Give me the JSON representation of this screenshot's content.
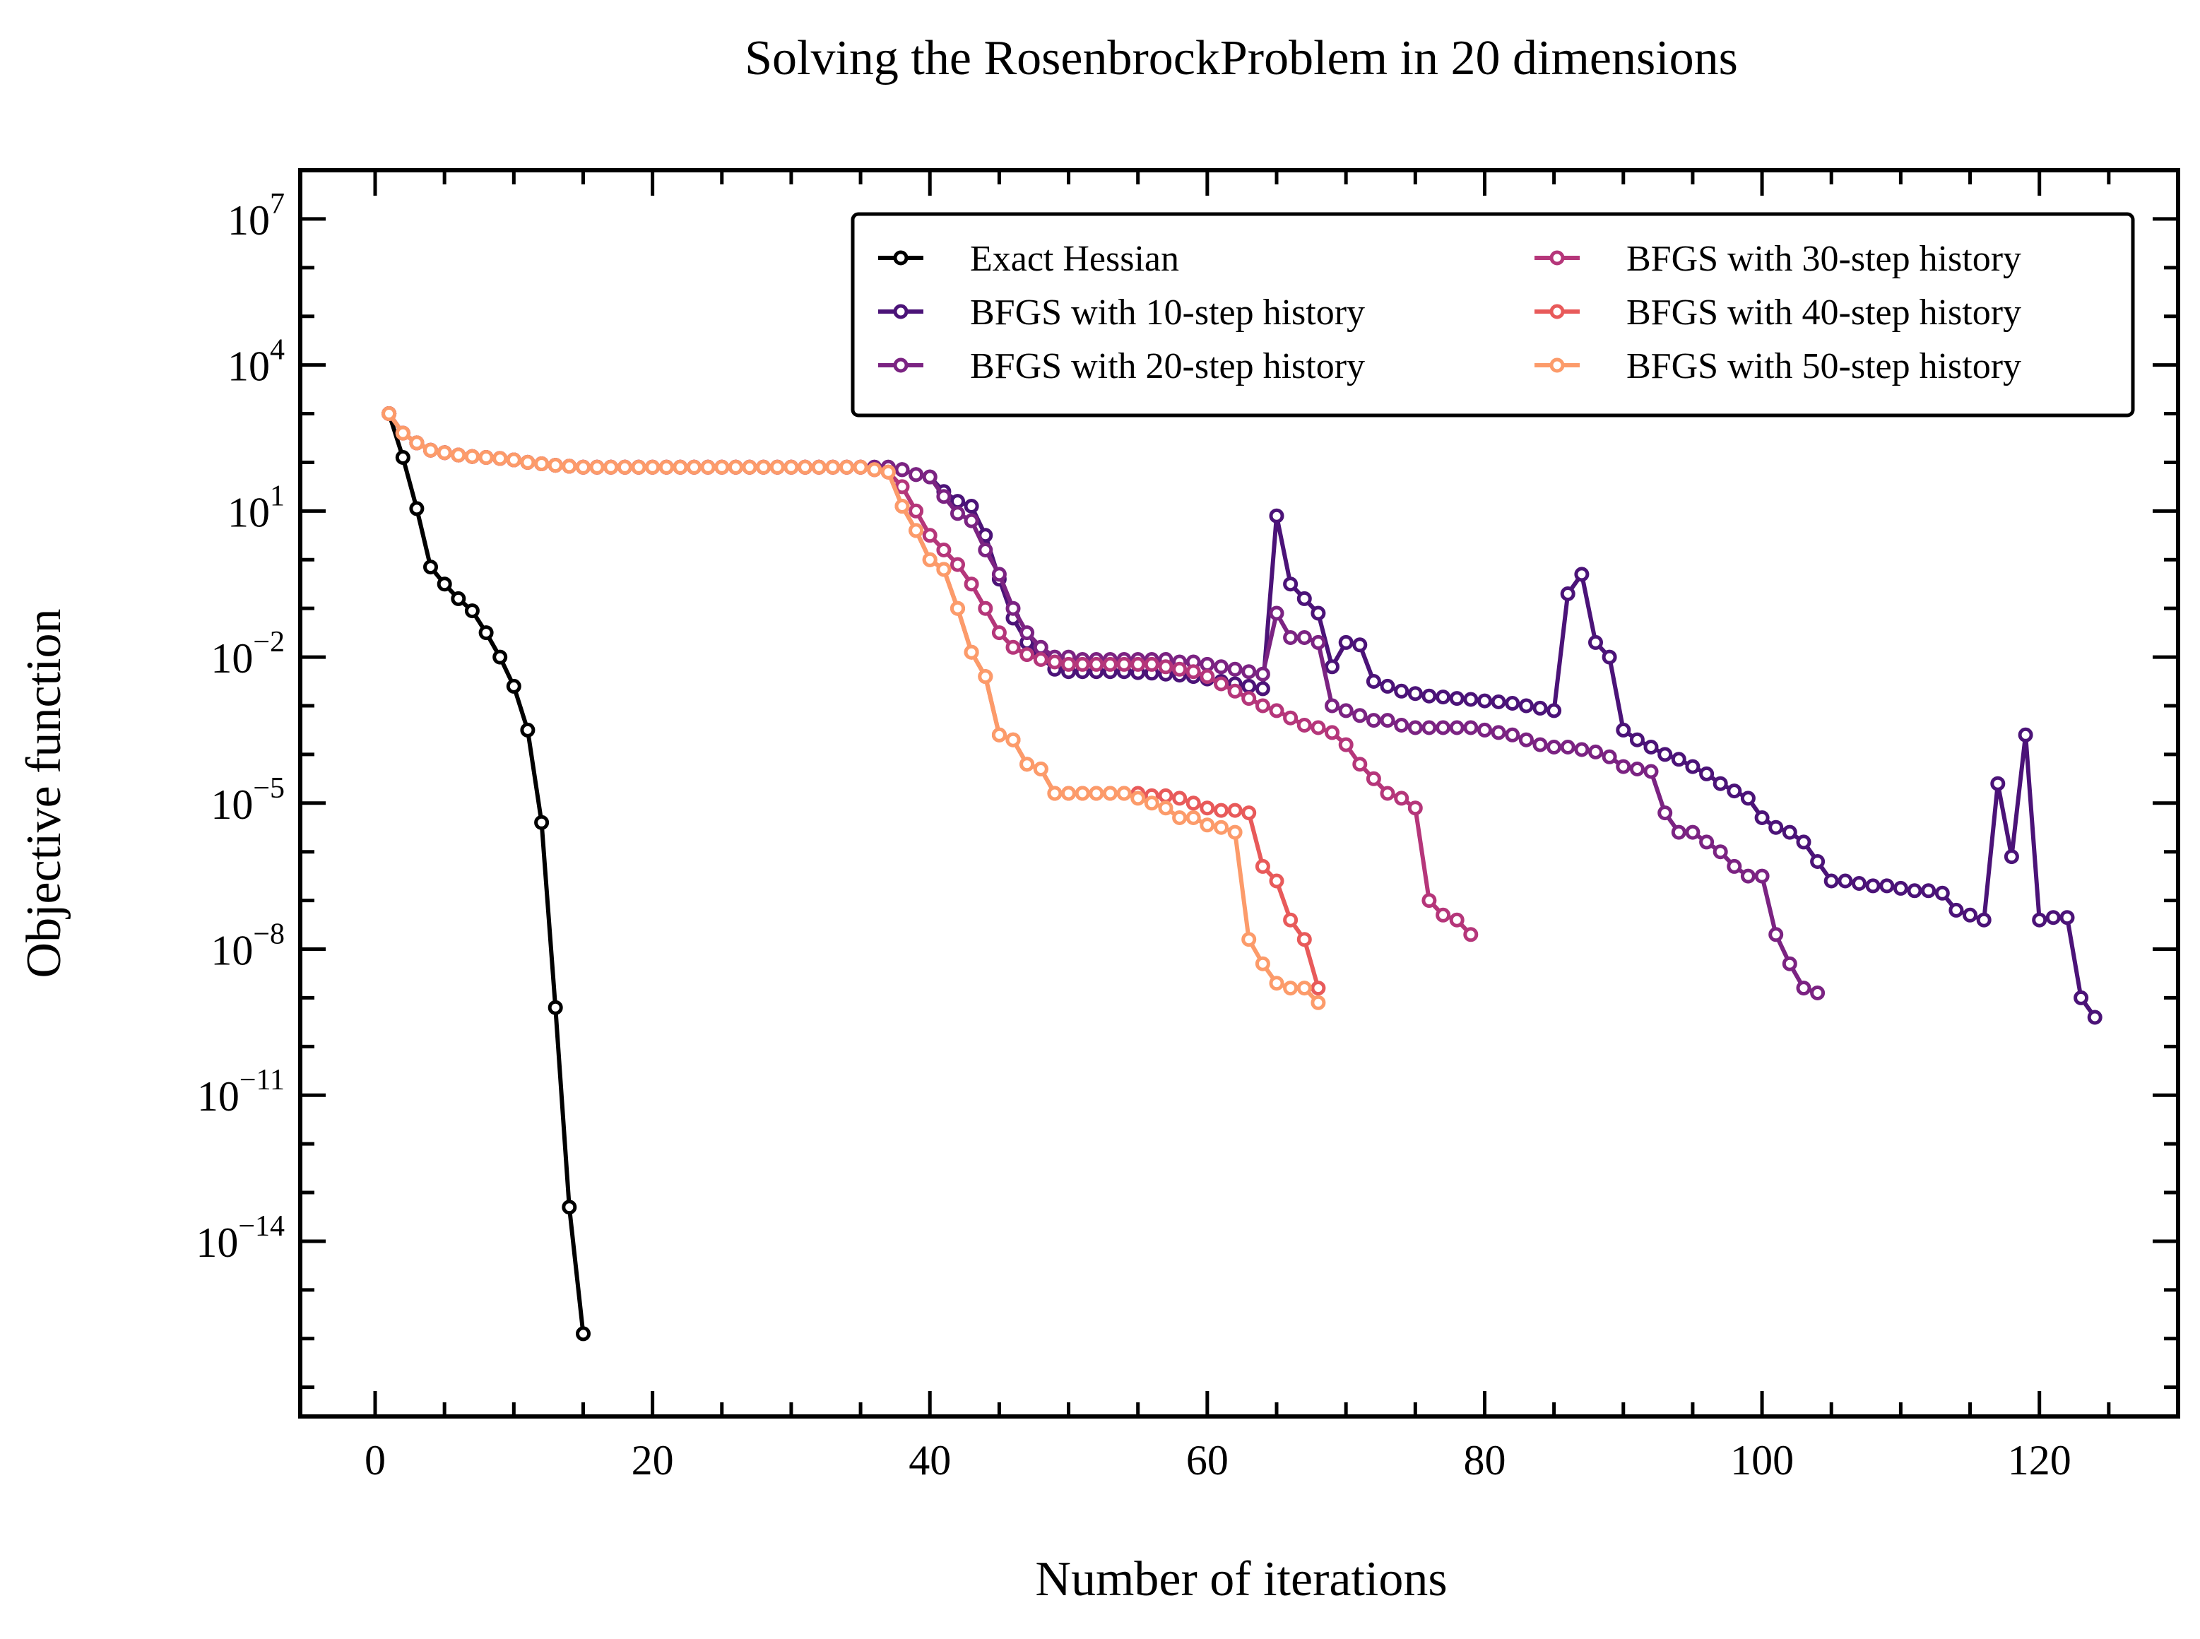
{
  "chart_data": {
    "type": "line",
    "title": "Solving the RosenbrockProblem in 20 dimensions",
    "xlabel": "Number of iterations",
    "ylabel": "Objective function",
    "xlim": [
      -5.4,
      130
    ],
    "x_ticks": [
      0,
      20,
      40,
      60,
      80,
      100,
      120
    ],
    "y_scale": "log",
    "ylim_exp": [
      -17.6,
      8
    ],
    "y_ticks": [
      {
        "exp": 7,
        "label": "10",
        "sup": "7"
      },
      {
        "exp": 4,
        "label": "10",
        "sup": "4"
      },
      {
        "exp": 1,
        "label": "10",
        "sup": "1"
      },
      {
        "exp": -2,
        "label": "10",
        "sup": "−2"
      },
      {
        "exp": -5,
        "label": "10",
        "sup": "−5"
      },
      {
        "exp": -8,
        "label": "10",
        "sup": "−8"
      },
      {
        "exp": -11,
        "label": "10",
        "sup": "−11"
      },
      {
        "exp": -14,
        "label": "10",
        "sup": "−14"
      }
    ],
    "grid": false,
    "legend_position": "top-right",
    "legend_columns": 2,
    "series": [
      {
        "name": "Exact Hessian",
        "color": "#000000",
        "x": [
          1,
          2,
          3,
          4,
          5,
          6,
          7,
          8,
          9,
          10,
          11,
          12,
          13,
          14,
          15
        ],
        "log10_y": [
          3.0,
          2.1,
          1.05,
          -0.15,
          -0.5,
          -0.8,
          -1.05,
          -1.5,
          -2.0,
          -2.6,
          -3.5,
          -5.4,
          -9.2,
          -13.3,
          -15.9
        ]
      },
      {
        "name": "BFGS with 10-step history",
        "color": "#4b1378",
        "x": [
          1,
          2,
          3,
          4,
          5,
          6,
          7,
          8,
          9,
          10,
          11,
          12,
          13,
          14,
          15,
          16,
          17,
          18,
          19,
          20,
          21,
          22,
          23,
          24,
          25,
          26,
          27,
          28,
          29,
          30,
          31,
          32,
          33,
          34,
          35,
          36,
          37,
          38,
          39,
          40,
          41,
          42,
          43,
          44,
          45,
          46,
          47,
          48,
          49,
          50,
          51,
          52,
          53,
          54,
          55,
          56,
          57,
          58,
          59,
          60,
          61,
          62,
          63,
          64,
          65,
          66,
          67,
          68,
          69,
          70,
          71,
          72,
          73,
          74,
          75,
          76,
          77,
          78,
          79,
          80,
          81,
          82,
          83,
          84,
          85,
          86,
          87,
          88,
          89,
          90,
          91,
          92,
          93,
          94,
          95,
          96,
          97,
          98,
          99,
          100,
          101,
          102,
          103,
          104,
          105,
          106,
          107,
          108,
          109,
          110,
          111,
          112,
          113,
          114,
          115,
          116,
          117,
          118,
          119,
          120,
          121,
          122,
          123,
          124
        ],
        "log10_y": [
          3.0,
          2.6,
          2.4,
          2.25,
          2.2,
          2.15,
          2.12,
          2.1,
          2.08,
          2.05,
          2.0,
          1.97,
          1.94,
          1.92,
          1.9,
          1.9,
          1.9,
          1.9,
          1.9,
          1.9,
          1.9,
          1.9,
          1.9,
          1.9,
          1.9,
          1.9,
          1.9,
          1.9,
          1.9,
          1.9,
          1.9,
          1.9,
          1.9,
          1.9,
          1.9,
          1.9,
          1.9,
          1.85,
          1.75,
          1.7,
          1.4,
          1.2,
          1.1,
          0.5,
          -0.4,
          -1.2,
          -1.7,
          -2.0,
          -2.25,
          -2.3,
          -2.3,
          -2.3,
          -2.3,
          -2.3,
          -2.32,
          -2.33,
          -2.35,
          -2.37,
          -2.4,
          -2.45,
          -2.5,
          -2.55,
          -2.6,
          -2.65,
          0.9,
          -0.5,
          -0.8,
          -1.1,
          -2.2,
          -1.7,
          -1.75,
          -2.5,
          -2.6,
          -2.7,
          -2.75,
          -2.8,
          -2.82,
          -2.85,
          -2.87,
          -2.9,
          -2.92,
          -2.95,
          -3.0,
          -3.05,
          -3.1,
          -0.7,
          -0.3,
          -1.7,
          -2.0,
          -3.5,
          -3.7,
          -3.85,
          -4.0,
          -4.1,
          -4.25,
          -4.4,
          -4.6,
          -4.75,
          -4.9,
          -5.3,
          -5.5,
          -5.6,
          -5.8,
          -6.2,
          -6.6,
          -6.6,
          -6.65,
          -6.7,
          -6.7,
          -6.75,
          -6.8,
          -6.8,
          -6.85,
          -7.2,
          -7.3,
          -7.4,
          -4.6,
          -6.1,
          -3.6,
          -7.4,
          -7.35,
          -7.35,
          -9.0,
          -9.4
        ]
      },
      {
        "name": "BFGS with 20-step history",
        "color": "#7b2382",
        "x": [
          1,
          2,
          3,
          4,
          5,
          6,
          7,
          8,
          9,
          10,
          11,
          12,
          13,
          14,
          15,
          16,
          17,
          18,
          19,
          20,
          21,
          22,
          23,
          24,
          25,
          26,
          27,
          28,
          29,
          30,
          31,
          32,
          33,
          34,
          35,
          36,
          37,
          38,
          39,
          40,
          41,
          42,
          43,
          44,
          45,
          46,
          47,
          48,
          49,
          50,
          51,
          52,
          53,
          54,
          55,
          56,
          57,
          58,
          59,
          60,
          61,
          62,
          63,
          64,
          65,
          66,
          67,
          68,
          69,
          70,
          71,
          72,
          73,
          74,
          75,
          76,
          77,
          78,
          79,
          80,
          81,
          82,
          83,
          84,
          85,
          86,
          87,
          88,
          89,
          90,
          91,
          92,
          93,
          94,
          95,
          96,
          97,
          98,
          99,
          100,
          101,
          102,
          103,
          104
        ],
        "log10_y": [
          3.0,
          2.6,
          2.4,
          2.25,
          2.2,
          2.15,
          2.12,
          2.1,
          2.08,
          2.05,
          2.0,
          1.97,
          1.94,
          1.92,
          1.9,
          1.9,
          1.9,
          1.9,
          1.9,
          1.9,
          1.9,
          1.9,
          1.9,
          1.9,
          1.9,
          1.9,
          1.9,
          1.9,
          1.9,
          1.9,
          1.9,
          1.9,
          1.9,
          1.9,
          1.9,
          1.9,
          1.9,
          1.85,
          1.75,
          1.7,
          1.3,
          0.95,
          0.8,
          0.2,
          -0.3,
          -1.0,
          -1.5,
          -1.8,
          -2.0,
          -2.0,
          -2.05,
          -2.05,
          -2.05,
          -2.05,
          -2.05,
          -2.05,
          -2.05,
          -2.1,
          -2.1,
          -2.15,
          -2.2,
          -2.25,
          -2.3,
          -2.35,
          -1.1,
          -1.6,
          -1.6,
          -1.7,
          -3.0,
          -3.1,
          -3.2,
          -3.3,
          -3.3,
          -3.4,
          -3.45,
          -3.45,
          -3.45,
          -3.45,
          -3.45,
          -3.5,
          -3.55,
          -3.6,
          -3.7,
          -3.8,
          -3.85,
          -3.85,
          -3.9,
          -3.95,
          -4.05,
          -4.25,
          -4.3,
          -4.35,
          -5.2,
          -5.6,
          -5.6,
          -5.8,
          -6.0,
          -6.3,
          -6.5,
          -6.5,
          -7.7,
          -8.3,
          -8.8,
          -8.9
        ]
      },
      {
        "name": "BFGS with 30-step history",
        "color": "#b5367a",
        "x": [
          1,
          2,
          3,
          4,
          5,
          6,
          7,
          8,
          9,
          10,
          11,
          12,
          13,
          14,
          15,
          16,
          17,
          18,
          19,
          20,
          21,
          22,
          23,
          24,
          25,
          26,
          27,
          28,
          29,
          30,
          31,
          32,
          33,
          34,
          35,
          36,
          37,
          38,
          39,
          40,
          41,
          42,
          43,
          44,
          45,
          46,
          47,
          48,
          49,
          50,
          51,
          52,
          53,
          54,
          55,
          56,
          57,
          58,
          59,
          60,
          61,
          62,
          63,
          64,
          65,
          66,
          67,
          68,
          69,
          70,
          71,
          72,
          73,
          74,
          75,
          76,
          77,
          78,
          79
        ],
        "log10_y": [
          3.0,
          2.6,
          2.4,
          2.25,
          2.2,
          2.15,
          2.12,
          2.1,
          2.08,
          2.05,
          2.0,
          1.97,
          1.94,
          1.92,
          1.9,
          1.9,
          1.9,
          1.9,
          1.9,
          1.9,
          1.9,
          1.9,
          1.9,
          1.9,
          1.9,
          1.9,
          1.9,
          1.9,
          1.9,
          1.9,
          1.9,
          1.9,
          1.9,
          1.9,
          1.9,
          1.85,
          1.8,
          1.5,
          1.0,
          0.5,
          0.2,
          -0.1,
          -0.5,
          -1.0,
          -1.5,
          -1.8,
          -1.95,
          -2.05,
          -2.1,
          -2.15,
          -2.15,
          -2.15,
          -2.15,
          -2.15,
          -2.15,
          -2.15,
          -2.2,
          -2.25,
          -2.3,
          -2.4,
          -2.55,
          -2.7,
          -2.85,
          -3.0,
          -3.1,
          -3.25,
          -3.4,
          -3.45,
          -3.55,
          -3.8,
          -4.2,
          -4.5,
          -4.8,
          -4.9,
          -5.1,
          -7.0,
          -7.3,
          -7.4,
          -7.7,
          -9.1
        ]
      },
      {
        "name": "BFGS with 40-step history",
        "color": "#e85a5a",
        "x": [
          1,
          2,
          3,
          4,
          5,
          6,
          7,
          8,
          9,
          10,
          11,
          12,
          13,
          14,
          15,
          16,
          17,
          18,
          19,
          20,
          21,
          22,
          23,
          24,
          25,
          26,
          27,
          28,
          29,
          30,
          31,
          32,
          33,
          34,
          35,
          36,
          37,
          38,
          39,
          40,
          41,
          42,
          43,
          44,
          45,
          46,
          47,
          48,
          49,
          50,
          51,
          52,
          53,
          54,
          55,
          56,
          57,
          58,
          59,
          60,
          61,
          62,
          63,
          64,
          65,
          66,
          67,
          68
        ],
        "log10_y": [
          3.0,
          2.6,
          2.4,
          2.25,
          2.2,
          2.15,
          2.12,
          2.1,
          2.08,
          2.05,
          2.0,
          1.97,
          1.94,
          1.92,
          1.9,
          1.9,
          1.9,
          1.9,
          1.9,
          1.9,
          1.9,
          1.9,
          1.9,
          1.9,
          1.9,
          1.9,
          1.9,
          1.9,
          1.9,
          1.9,
          1.9,
          1.9,
          1.9,
          1.9,
          1.9,
          1.85,
          1.8,
          1.1,
          0.6,
          0.0,
          -0.2,
          -1.0,
          -1.9,
          -2.4,
          -3.6,
          -3.7,
          -4.2,
          -4.3,
          -4.8,
          -4.8,
          -4.8,
          -4.8,
          -4.8,
          -4.8,
          -4.8,
          -4.85,
          -4.85,
          -4.9,
          -5.0,
          -5.1,
          -5.15,
          -5.15,
          -5.2,
          -6.3,
          -6.6,
          -7.4,
          -7.8,
          -8.8
        ]
      },
      {
        "name": "BFGS with 50-step history",
        "color": "#fc9b6a",
        "x": [
          1,
          2,
          3,
          4,
          5,
          6,
          7,
          8,
          9,
          10,
          11,
          12,
          13,
          14,
          15,
          16,
          17,
          18,
          19,
          20,
          21,
          22,
          23,
          24,
          25,
          26,
          27,
          28,
          29,
          30,
          31,
          32,
          33,
          34,
          35,
          36,
          37,
          38,
          39,
          40,
          41,
          42,
          43,
          44,
          45,
          46,
          47,
          48,
          49,
          50,
          51,
          52,
          53,
          54,
          55,
          56,
          57,
          58,
          59,
          60,
          61,
          62,
          63,
          64,
          65,
          66,
          67,
          68
        ],
        "log10_y": [
          3.0,
          2.6,
          2.4,
          2.25,
          2.2,
          2.15,
          2.12,
          2.1,
          2.08,
          2.05,
          2.0,
          1.97,
          1.94,
          1.92,
          1.9,
          1.9,
          1.9,
          1.9,
          1.9,
          1.9,
          1.9,
          1.9,
          1.9,
          1.9,
          1.9,
          1.9,
          1.9,
          1.9,
          1.9,
          1.9,
          1.9,
          1.9,
          1.9,
          1.9,
          1.9,
          1.85,
          1.8,
          1.1,
          0.6,
          0.0,
          -0.2,
          -1.0,
          -1.9,
          -2.4,
          -3.6,
          -3.7,
          -4.2,
          -4.3,
          -4.8,
          -4.8,
          -4.8,
          -4.8,
          -4.8,
          -4.8,
          -4.9,
          -5.0,
          -5.1,
          -5.3,
          -5.3,
          -5.45,
          -5.5,
          -5.6,
          -7.8,
          -8.3,
          -8.7,
          -8.8,
          -8.8,
          -9.1
        ]
      }
    ]
  }
}
